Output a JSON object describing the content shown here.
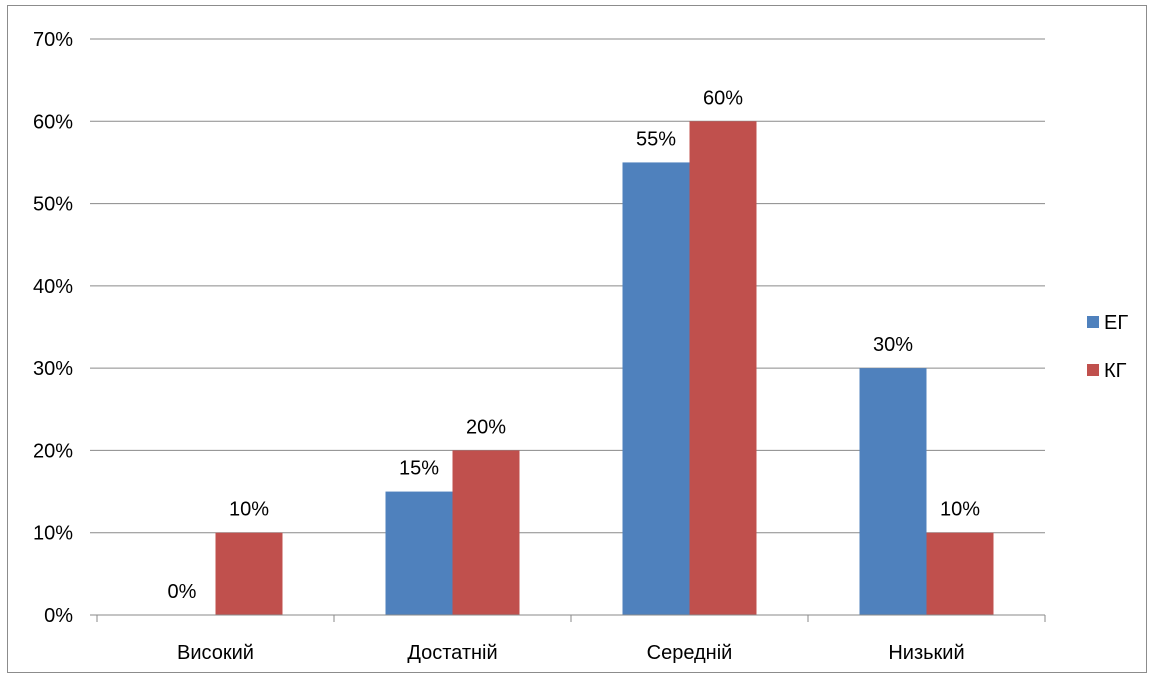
{
  "chart_data": {
    "type": "bar",
    "categories": [
      "Високий",
      "Достатній",
      "Середній",
      "Низький"
    ],
    "series": [
      {
        "name": "ЕГ",
        "values": [
          0,
          15,
          55,
          30
        ],
        "labels": [
          "0%",
          "15%",
          "55%",
          "30%"
        ],
        "color": "#4f81bd"
      },
      {
        "name": "КГ",
        "values": [
          10,
          20,
          60,
          10
        ],
        "labels": [
          "10%",
          "20%",
          "60%",
          "10%"
        ],
        "color": "#c0504d"
      }
    ],
    "ylim": [
      0,
      70
    ],
    "yticks": [
      "0%",
      "10%",
      "20%",
      "30%",
      "40%",
      "50%",
      "60%",
      "70%"
    ],
    "title": "",
    "xlabel": "",
    "ylabel": "",
    "grid": true,
    "legend_position": "right"
  }
}
